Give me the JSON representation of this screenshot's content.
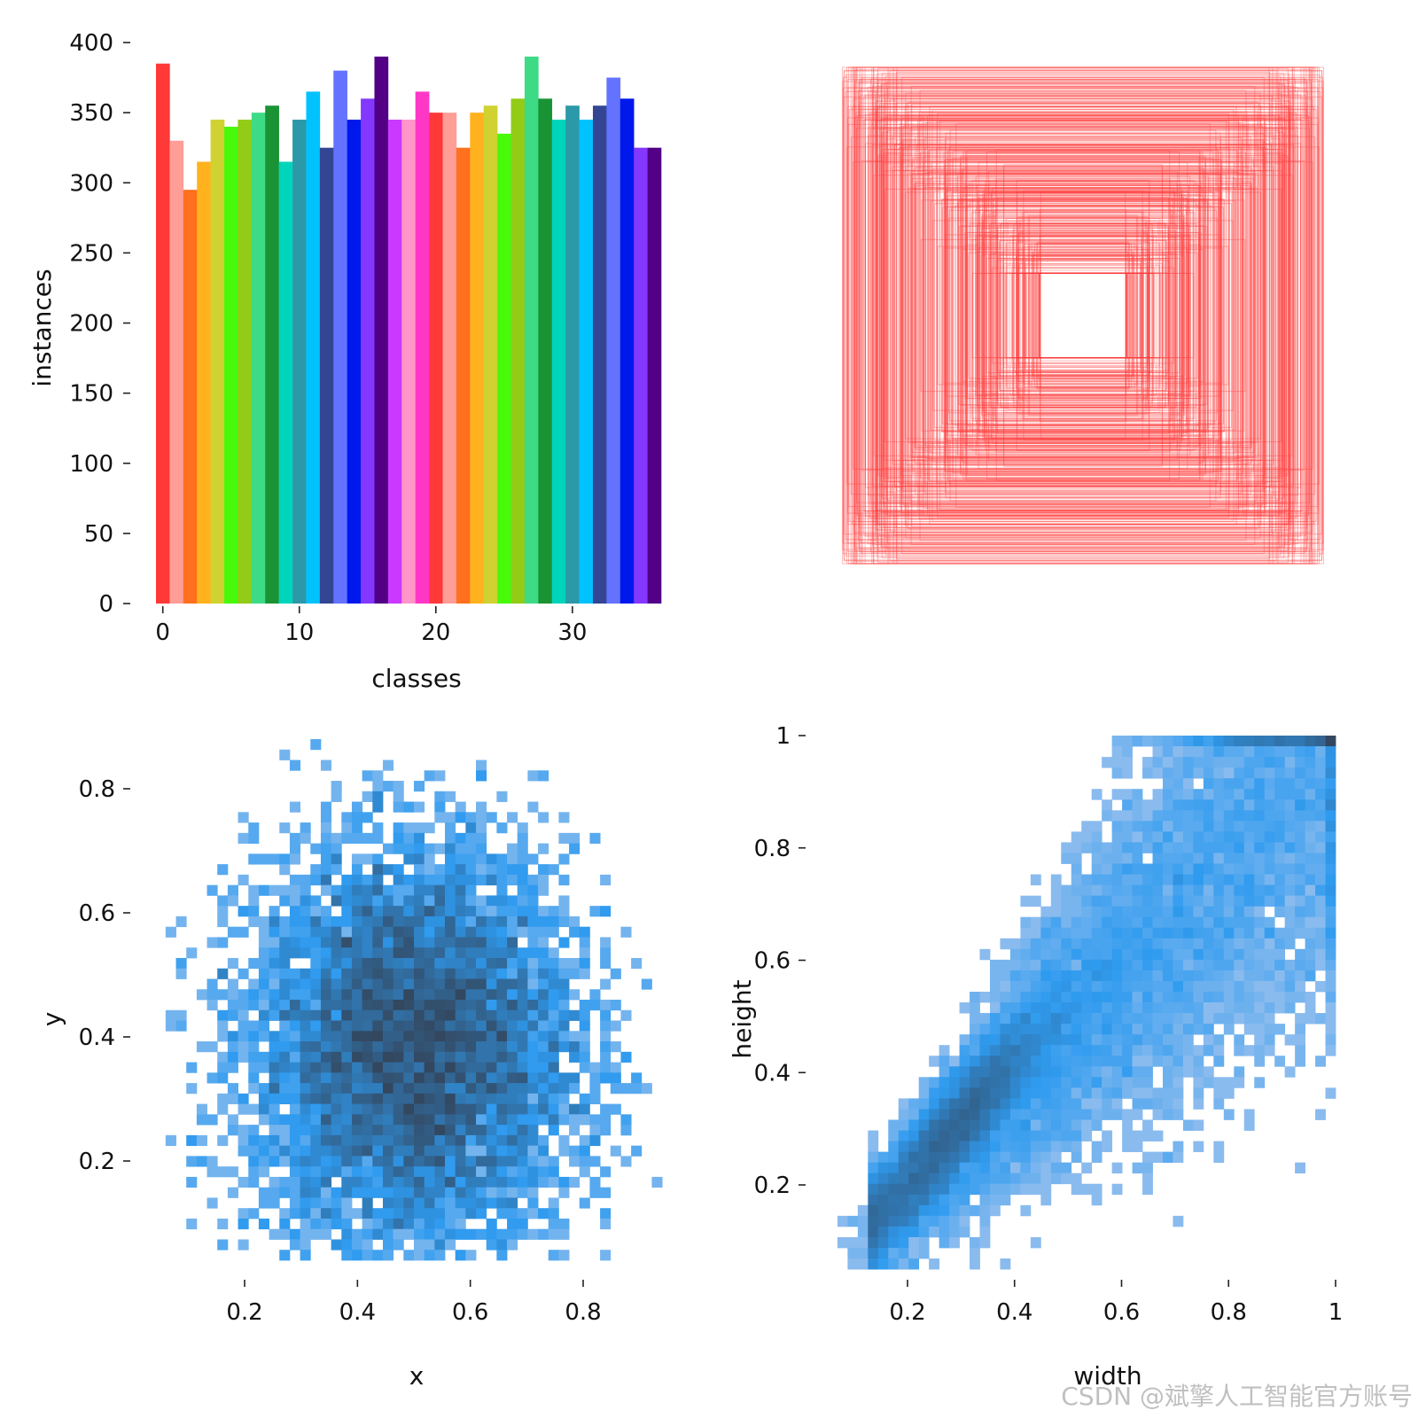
{
  "chart_data": [
    {
      "type": "bar",
      "xlabel": "classes",
      "ylabel": "instances",
      "xticks": [
        0,
        10,
        20,
        30
      ],
      "yticks": [
        0,
        50,
        100,
        150,
        200,
        250,
        300,
        350,
        400
      ],
      "xlim": [
        -0.5,
        36.5
      ],
      "ylim": [
        0,
        400
      ],
      "categories": [
        0,
        1,
        2,
        3,
        4,
        5,
        6,
        7,
        8,
        9,
        10,
        11,
        12,
        13,
        14,
        15,
        16,
        17,
        18,
        19,
        20,
        21,
        22,
        23,
        24,
        25,
        26,
        27,
        28,
        29,
        30,
        31,
        32,
        33,
        34,
        35,
        36
      ],
      "values": [
        385,
        330,
        295,
        315,
        345,
        340,
        345,
        350,
        355,
        315,
        345,
        365,
        325,
        380,
        345,
        360,
        390,
        345,
        345,
        365,
        350,
        350,
        325,
        350,
        355,
        335,
        360,
        390,
        360,
        345,
        355,
        345,
        355,
        375,
        360,
        325,
        325
      ],
      "colors": [
        "#ff3838",
        "#ff9d97",
        "#ff701f",
        "#ffb21d",
        "#cfd231",
        "#48f90a",
        "#92cc17",
        "#3ddb86",
        "#1a9334",
        "#00d4bb",
        "#2c99a8",
        "#00c2ff",
        "#344593",
        "#6473ff",
        "#0018ec",
        "#8438ff",
        "#520085",
        "#cb38ff",
        "#ff95c8",
        "#ff37c7",
        "#ff3838",
        "#ff9d97",
        "#ff701f",
        "#ffb21d",
        "#cfd231",
        "#48f90a",
        "#92cc17",
        "#3ddb86",
        "#1a9334",
        "#00d4bb",
        "#2c99a8",
        "#00c2ff",
        "#344593",
        "#6473ff",
        "#0018ec",
        "#8438ff",
        "#520085"
      ]
    },
    {
      "type": "rectangles",
      "description_color": "#ff3838",
      "count_drawn": 500
    },
    {
      "type": "heatmap",
      "xlabel": "x",
      "ylabel": "y",
      "xticks": [
        0.2,
        0.4,
        0.6,
        0.8
      ],
      "yticks": [
        0.2,
        0.4,
        0.6,
        0.8
      ],
      "xlim": [
        0.0,
        1.0
      ],
      "ylim": [
        0.0,
        1.0
      ],
      "center": [
        0.5,
        0.38
      ],
      "spread": [
        0.14,
        0.16
      ]
    },
    {
      "type": "heatmap",
      "xlabel": "width",
      "ylabel": "height",
      "xticks": [
        0.2,
        0.4,
        0.6,
        0.8,
        1.0
      ],
      "yticks": [
        0.2,
        0.4,
        0.6,
        0.8,
        1.0
      ],
      "xlim": [
        0.05,
        1.0
      ],
      "ylim": [
        0.05,
        1.0
      ]
    }
  ],
  "watermark": "CSDN @斌擎人工智能官方账号",
  "colors": {
    "heat_low": "#a8c6ee",
    "heat_mid": "#2f9bef",
    "heat_high": "#33475f"
  }
}
